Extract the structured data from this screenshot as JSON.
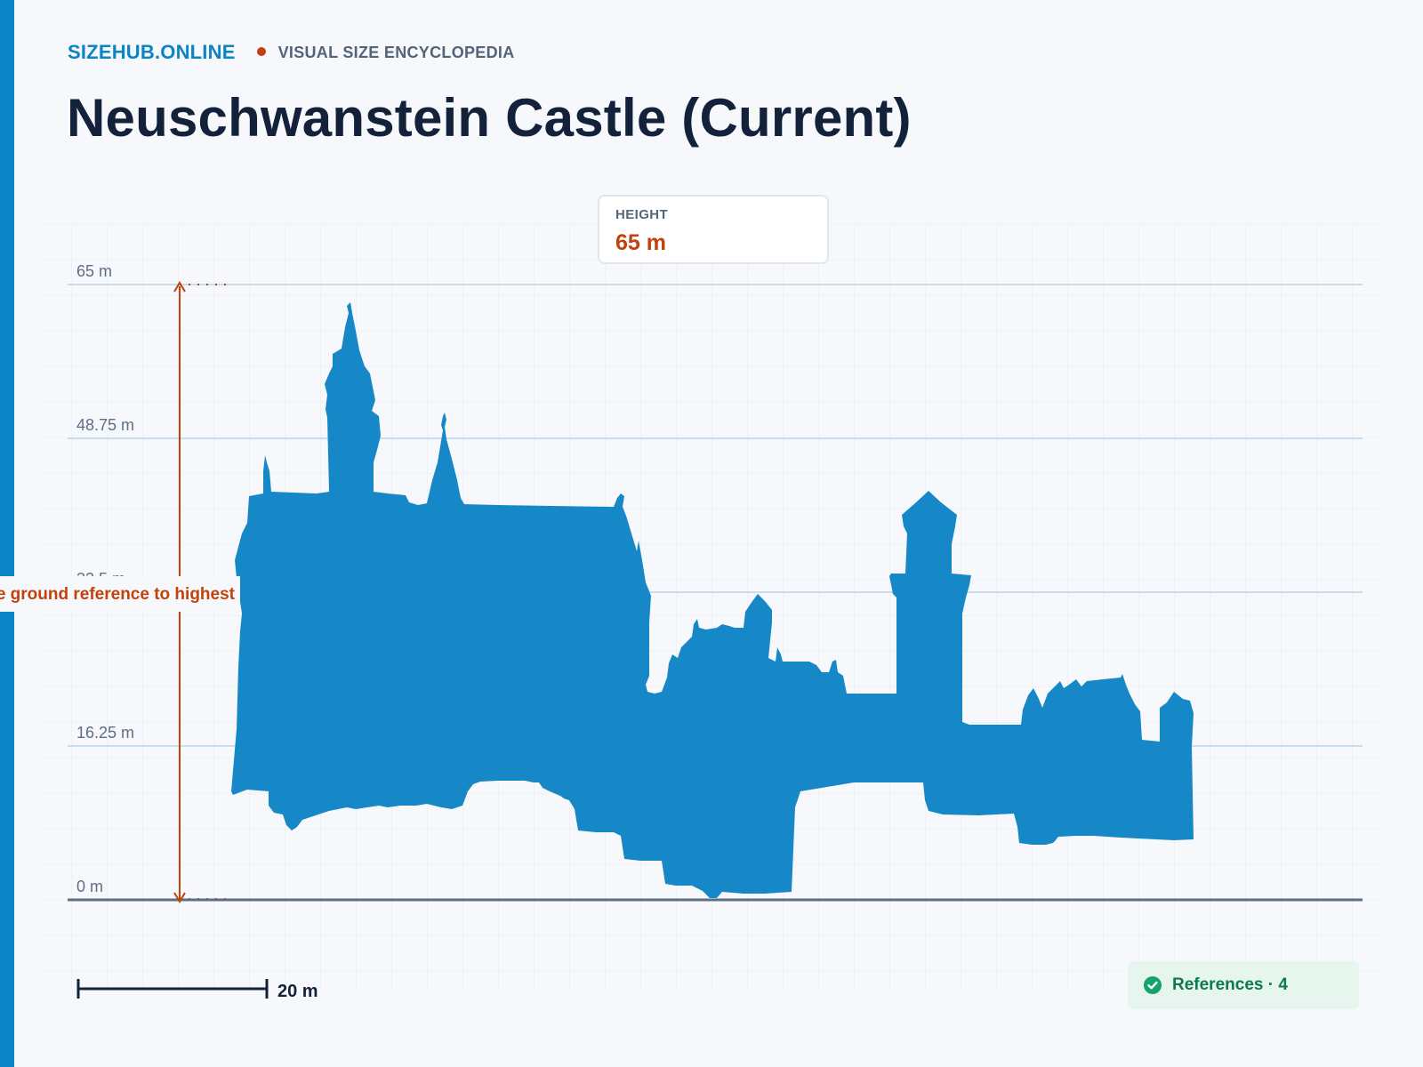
{
  "brand": {
    "name": "SIZEHUB.ONLINE",
    "tagline": "VISUAL SIZE ENCYCLOPEDIA"
  },
  "title": "Neuschwanstein Castle (Current)",
  "height_card": {
    "label": "HEIGHT",
    "value": "65 m"
  },
  "diagram": {
    "y_axis_max_m": 65,
    "y_ticks": [
      {
        "value": 0,
        "label": "0 m"
      },
      {
        "value": 16.25,
        "label": "16.25 m"
      },
      {
        "value": 32.5,
        "label": "32.5 m"
      },
      {
        "value": 48.75,
        "label": "48.75 m"
      },
      {
        "value": 65,
        "label": "65 m"
      }
    ],
    "measurement_label": "From the ground reference to highest",
    "scale_bar": {
      "value_m": 20,
      "label": "20 m"
    },
    "silhouette_color": "#1688c8",
    "measure_color": "#c2410c"
  },
  "references": {
    "label": "References · 4",
    "icon": "check-circle-icon"
  }
}
